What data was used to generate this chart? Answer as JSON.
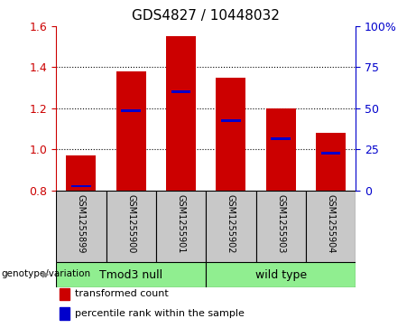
{
  "title": "GDS4827 / 10448032",
  "categories": [
    "GSM1255899",
    "GSM1255900",
    "GSM1255901",
    "GSM1255902",
    "GSM1255903",
    "GSM1255904"
  ],
  "red_values": [
    0.97,
    1.38,
    1.55,
    1.35,
    1.2,
    1.08
  ],
  "blue_values": [
    0.82,
    1.19,
    1.28,
    1.14,
    1.05,
    0.98
  ],
  "ylim": [
    0.8,
    1.6
  ],
  "yticks_left": [
    0.8,
    1.0,
    1.2,
    1.4,
    1.6
  ],
  "yticks_right": [
    0,
    25,
    50,
    75,
    100
  ],
  "bar_bottom": 0.8,
  "bar_width": 0.6,
  "group1_label": "Tmod3 null",
  "group2_label": "wild type",
  "group_bg_color": "#90EE90",
  "cell_bg_color": "#C8C8C8",
  "red_color": "#CC0000",
  "blue_color": "#0000CC",
  "legend_red_label": "transformed count",
  "legend_blue_label": "percentile rank within the sample",
  "genotype_label": "genotype/variation",
  "title_fontsize": 11,
  "tick_fontsize": 9,
  "label_fontsize": 8
}
